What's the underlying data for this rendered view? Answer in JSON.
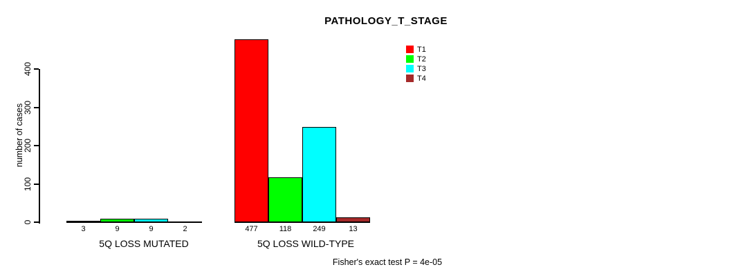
{
  "chart_data": {
    "type": "bar",
    "title": "PATHOLOGY_T_STAGE",
    "ylabel": "number of cases",
    "xlabel": "",
    "ylim": [
      0,
      400
    ],
    "yticks": [
      0,
      100,
      200,
      300,
      400
    ],
    "grid": false,
    "legend_position": "top-right-of-plot",
    "categories": [
      "5Q LOSS MUTATED",
      "5Q LOSS WILD-TYPE"
    ],
    "series": [
      {
        "name": "T1",
        "color": "#ff0000",
        "values": [
          3,
          477
        ]
      },
      {
        "name": "T2",
        "color": "#00ff00",
        "values": [
          9,
          118
        ]
      },
      {
        "name": "T3",
        "color": "#00ffff",
        "values": [
          9,
          249
        ]
      },
      {
        "name": "T4",
        "color": "#a52a2a",
        "values": [
          2,
          13
        ]
      }
    ],
    "bar_value_labels_shown": true,
    "annotation": "Fisher's exact test P = 4e-05"
  },
  "colors": {
    "background": "#ffffff",
    "axis": "#000000",
    "text": "#000000",
    "bar_border": "#000000"
  }
}
